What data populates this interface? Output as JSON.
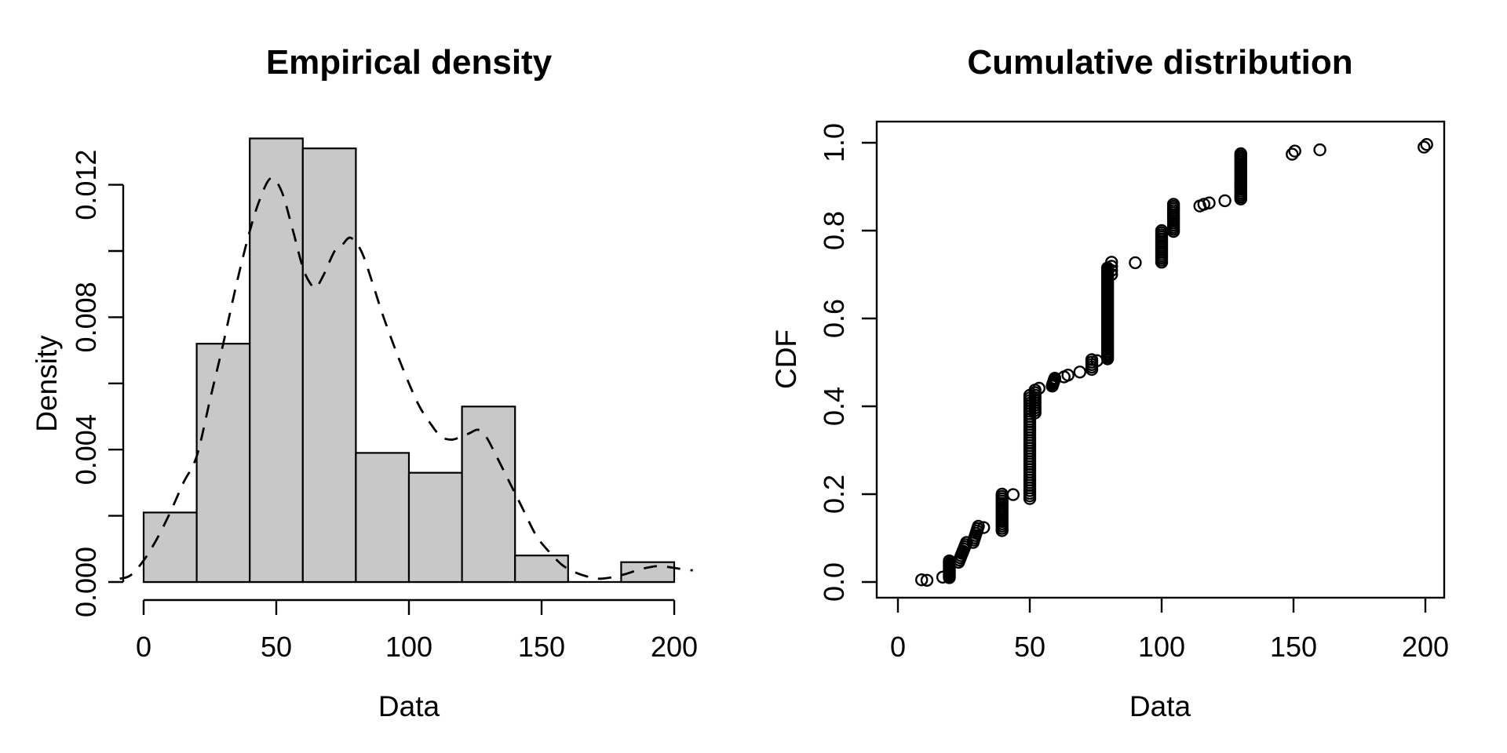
{
  "figure": {
    "background": "#ffffff",
    "foreground": "#000000"
  },
  "chart_data": [
    {
      "type": "bar",
      "variant": "histogram-with-density-overlay",
      "title": "Empirical density",
      "xlabel": "Data",
      "ylabel": "Density",
      "xlim": [
        -10,
        210
      ],
      "ylim": [
        0,
        0.0139
      ],
      "grid": false,
      "legend": "none",
      "bar_fill": "#c8c8c8",
      "bar_stroke": "#000000",
      "bin_width": 20,
      "bin_edges": [
        0,
        20,
        40,
        60,
        80,
        100,
        120,
        140,
        160,
        180,
        200
      ],
      "densities": [
        0.0021,
        0.0072,
        0.0134,
        0.0131,
        0.0039,
        0.0033,
        0.0053,
        0.0008,
        0,
        0.0006
      ],
      "x_ticks": [
        {
          "v": 0,
          "label": "0"
        },
        {
          "v": 50,
          "label": "50"
        },
        {
          "v": 100,
          "label": "100"
        },
        {
          "v": 150,
          "label": "150"
        },
        {
          "v": 200,
          "label": "200"
        }
      ],
      "y_ticks": [
        {
          "v": 0.0,
          "label": "0.000"
        },
        {
          "v": 0.002,
          "label": ""
        },
        {
          "v": 0.004,
          "label": "0.004"
        },
        {
          "v": 0.006,
          "label": ""
        },
        {
          "v": 0.008,
          "label": "0.008"
        },
        {
          "v": 0.01,
          "label": ""
        },
        {
          "v": 0.012,
          "label": "0.012"
        }
      ],
      "density_curve": {
        "line_style": "dashed",
        "color": "#000000",
        "points": [
          [
            -9,
            0.0001
          ],
          [
            -5,
            0.0002
          ],
          [
            0,
            0.00065
          ],
          [
            5,
            0.0013
          ],
          [
            10,
            0.0021
          ],
          [
            15,
            0.003
          ],
          [
            20,
            0.0038
          ],
          [
            25,
            0.0055
          ],
          [
            30,
            0.0072
          ],
          [
            35,
            0.009
          ],
          [
            40,
            0.0106
          ],
          [
            44,
            0.0116
          ],
          [
            48,
            0.0122
          ],
          [
            52,
            0.0118
          ],
          [
            56,
            0.0107
          ],
          [
            60,
            0.0095
          ],
          [
            63,
            0.009
          ],
          [
            65,
            0.0089
          ],
          [
            68,
            0.0093
          ],
          [
            72,
            0.01
          ],
          [
            75,
            0.0102
          ],
          [
            78,
            0.0104
          ],
          [
            82,
            0.01
          ],
          [
            86,
            0.0091
          ],
          [
            90,
            0.0081
          ],
          [
            95,
            0.007
          ],
          [
            100,
            0.006
          ],
          [
            104,
            0.0053
          ],
          [
            108,
            0.0048
          ],
          [
            112,
            0.0044
          ],
          [
            116,
            0.0043
          ],
          [
            120,
            0.0044
          ],
          [
            123,
            0.0045
          ],
          [
            126,
            0.0046
          ],
          [
            129,
            0.0044
          ],
          [
            133,
            0.0038
          ],
          [
            138,
            0.003
          ],
          [
            143,
            0.0022
          ],
          [
            148,
            0.0014
          ],
          [
            153,
            0.0009
          ],
          [
            158,
            0.0005
          ],
          [
            163,
            0.00028
          ],
          [
            168,
            0.00015
          ],
          [
            172,
            0.0001
          ],
          [
            177,
            0.00015
          ],
          [
            182,
            0.00025
          ],
          [
            187,
            0.00038
          ],
          [
            191,
            0.00045
          ],
          [
            194,
            0.00048
          ],
          [
            198,
            0.00045
          ],
          [
            202,
            0.0004
          ],
          [
            207,
            0.00035
          ]
        ]
      }
    },
    {
      "type": "scatter",
      "variant": "ecdf",
      "title": "Cumulative distribution",
      "xlabel": "Data",
      "ylabel": "CDF",
      "xlim": [
        0,
        210
      ],
      "ylim": [
        0,
        1
      ],
      "grid": false,
      "legend": "none",
      "marker": "open-circle",
      "marker_color": "#000000",
      "x_ticks": [
        {
          "v": 0,
          "label": "0"
        },
        {
          "v": 50,
          "label": "50"
        },
        {
          "v": 100,
          "label": "100"
        },
        {
          "v": 150,
          "label": "150"
        },
        {
          "v": 200,
          "label": "200"
        }
      ],
      "y_ticks": [
        {
          "v": 0.0,
          "label": "0.0"
        },
        {
          "v": 0.2,
          "label": "0.2"
        },
        {
          "v": 0.4,
          "label": "0.4"
        },
        {
          "v": 0.6,
          "label": "0.6"
        },
        {
          "v": 0.8,
          "label": "0.8"
        },
        {
          "v": 1.0,
          "label": "1.0"
        }
      ],
      "point_clusters": [
        {
          "x": 9,
          "y": 0.005
        },
        {
          "x": 11,
          "y": 0.004
        },
        {
          "x": 17,
          "y": 0.011
        },
        {
          "x": 19.5,
          "y0": 0.01,
          "y1": 0.048,
          "n": 12
        },
        {
          "x0": 23,
          "x1": 26,
          "y0": 0.045,
          "y1": 0.09,
          "n": 10
        },
        {
          "x0": 28.5,
          "x1": 30.5,
          "y0": 0.09,
          "y1": 0.127,
          "n": 8
        },
        {
          "x": 32.5,
          "y": 0.124
        },
        {
          "x": 39.5,
          "y0": 0.117,
          "y1": 0.2,
          "n": 17
        },
        {
          "x": 43.7,
          "y": 0.199
        },
        {
          "x": 50,
          "y0": 0.19,
          "y1": 0.425,
          "n": 40
        },
        {
          "x": 52,
          "y0": 0.385,
          "y1": 0.437,
          "n": 10
        },
        {
          "x": 53.5,
          "y": 0.441
        },
        {
          "x0": 58.5,
          "x1": 59.5,
          "y0": 0.446,
          "y1": 0.464,
          "n": 6
        },
        {
          "x": 63,
          "y": 0.467
        },
        {
          "x": 64.5,
          "y": 0.471
        },
        {
          "x": 69,
          "y": 0.478
        },
        {
          "x": 73.5,
          "y0": 0.484,
          "y1": 0.506,
          "n": 5
        },
        {
          "x": 75.5,
          "y": 0.504
        },
        {
          "x": 79.5,
          "y0": 0.508,
          "y1": 0.715,
          "n": 50
        },
        {
          "x": 81,
          "y0": 0.7,
          "y1": 0.728,
          "n": 4
        },
        {
          "x": 90,
          "y": 0.727
        },
        {
          "x": 100,
          "y0": 0.728,
          "y1": 0.8,
          "n": 16
        },
        {
          "x": 104.5,
          "y0": 0.798,
          "y1": 0.86,
          "n": 14
        },
        {
          "x": 114.5,
          "y": 0.856
        },
        {
          "x": 116,
          "y": 0.86
        },
        {
          "x": 118,
          "y": 0.863
        },
        {
          "x": 124,
          "y": 0.868
        },
        {
          "x": 130,
          "y0": 0.872,
          "y1": 0.975,
          "n": 24
        },
        {
          "x": 149.5,
          "y": 0.974
        },
        {
          "x": 150.5,
          "y": 0.981
        },
        {
          "x": 160,
          "y": 0.984
        },
        {
          "x": 199.5,
          "y": 0.99
        },
        {
          "x": 200.5,
          "y": 0.996
        }
      ]
    }
  ]
}
